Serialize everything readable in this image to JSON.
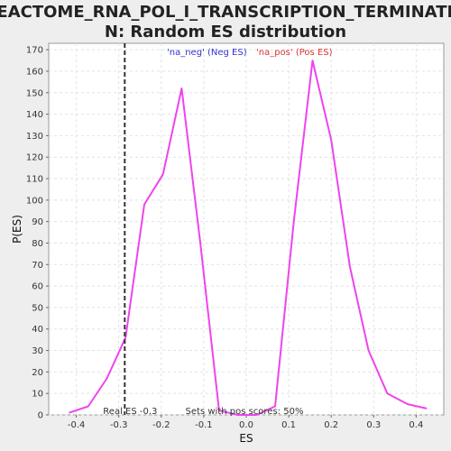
{
  "chart_data": {
    "type": "line",
    "title_lines": [
      "REACTOME_RNA_POL_I_TRANSCRIPTION_TERMINATIO",
      "N: Random ES distribution"
    ],
    "xlabel": "ES",
    "ylabel": "P(ES)",
    "xlim": [
      -0.465,
      0.465
    ],
    "ylim": [
      0,
      173
    ],
    "x_ticks": [
      -0.4,
      -0.3,
      -0.2,
      -0.1,
      0.0,
      0.1,
      0.2,
      0.3,
      0.4
    ],
    "x_tick_labels": [
      "-0.4",
      "-0.3",
      "-0.2",
      "-0.1",
      "0.0",
      "0.1",
      "0.2",
      "0.3",
      "0.4"
    ],
    "y_ticks": [
      0,
      10,
      20,
      30,
      40,
      50,
      60,
      70,
      80,
      90,
      100,
      110,
      120,
      130,
      140,
      150,
      160,
      170
    ],
    "grid": true,
    "series": [
      {
        "color": "#ee44ee",
        "x": [
          -0.417,
          -0.372,
          -0.328,
          -0.284,
          -0.24,
          -0.196,
          -0.152,
          -0.108,
          -0.064,
          -0.02,
          0.024,
          0.068,
          0.112,
          0.156,
          0.2,
          0.244,
          0.288,
          0.332,
          0.38,
          0.425
        ],
        "y": [
          1,
          4,
          17,
          36,
          98,
          112,
          152,
          80,
          2,
          0,
          0,
          4,
          90,
          165,
          128,
          69,
          30,
          10,
          5,
          3
        ]
      }
    ],
    "legend": [
      {
        "label": "'na_neg' (Neg ES)",
        "color": "#3333cc"
      },
      {
        "label": "'na_pos' (Pos ES)",
        "color": "#dd3333"
      }
    ],
    "legend_placement": "top-center",
    "real_es": {
      "value": -0.286,
      "label": "Real ES -0.3"
    },
    "annotation": "Sets with pos scores: 50%"
  }
}
